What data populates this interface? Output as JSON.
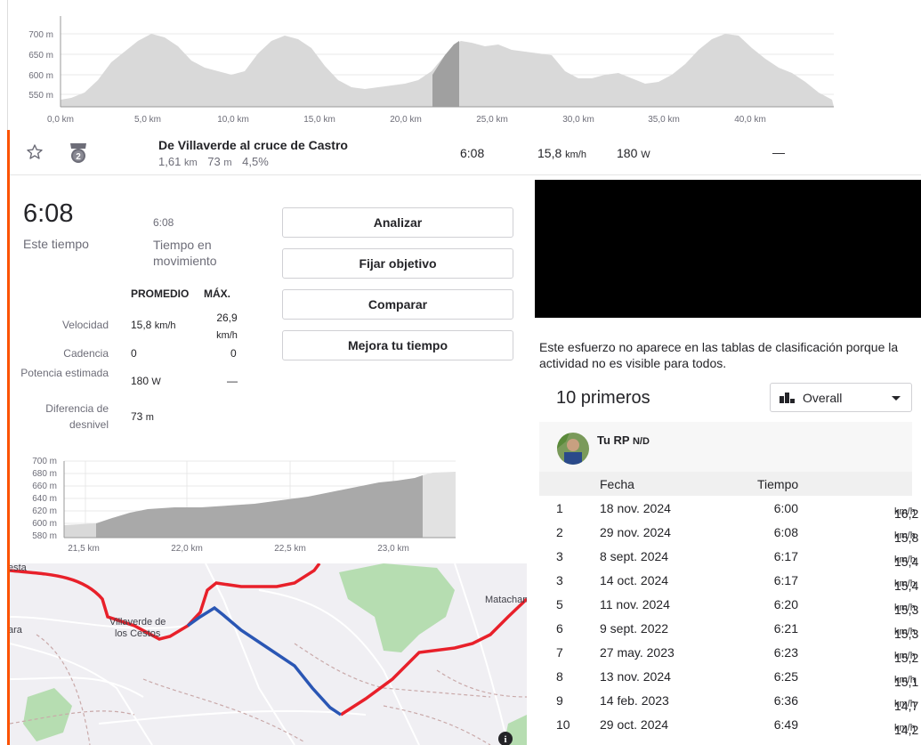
{
  "top_chart": {
    "y_ticks": [
      "700 m",
      "650 m",
      "600 m",
      "550 m"
    ],
    "x_ticks": [
      "0,0 km",
      "5,0 km",
      "10,0 km",
      "15,0 km",
      "20,0 km",
      "25,0 km",
      "30,0 km",
      "35,0 km",
      "40,0 km"
    ]
  },
  "segment": {
    "name": "De Villaverde al cruce de Castro",
    "distance": "1,61",
    "distance_unit": "km",
    "elev": "73",
    "elev_unit": "m",
    "grade": "4,5%",
    "time": "6:08",
    "speed": "15,8",
    "speed_unit": "km/h",
    "power": "180",
    "power_unit": "W",
    "extra": "—",
    "medal_number": "2"
  },
  "detail": {
    "big_time": "6:08",
    "big_time_label": "Este tiempo",
    "moving_time": "6:08",
    "moving_time_label": "Tiempo en movimiento",
    "avg_header": "PROMEDIO",
    "max_header": "MÁX.",
    "rows": [
      {
        "label": "Velocidad",
        "avg": "15,8",
        "avg_unit": "km/h",
        "max": "26,9",
        "max_unit": "km/h"
      },
      {
        "label": "Cadencia",
        "avg": "0",
        "avg_unit": "",
        "max": "0",
        "max_unit": ""
      },
      {
        "label": "Potencia estimada",
        "avg": "180",
        "avg_unit": "W",
        "max": "—",
        "max_unit": ""
      },
      {
        "label": "Diferencia de desnivel",
        "avg": "73",
        "avg_unit": "m",
        "max": "",
        "max_unit": ""
      }
    ]
  },
  "buttons": {
    "analyze": "Analizar",
    "set_goal": "Fijar objetivo",
    "compare": "Comparar",
    "improve": "Mejora tu tiempo"
  },
  "small_chart": {
    "y_ticks": [
      "700 m",
      "680 m",
      "660 m",
      "640 m",
      "620 m",
      "600 m",
      "580 m"
    ],
    "x_ticks": [
      "21,5 km",
      "22,0 km",
      "22,5 km",
      "23,0 km"
    ]
  },
  "map": {
    "place_1": "Villaverde de",
    "place_2": "los Cestos",
    "place_3": "Matachan",
    "edge_1": "esta",
    "edge_2": "ara"
  },
  "notice": "Este esfuerzo no aparece en las tablas de clasificación porque la actividad no es visible para todos.",
  "leaderboard": {
    "title": "10 primeros",
    "filter": "Overall",
    "your_pr": "Tu RP",
    "your_pr_value": "N/D",
    "col_date": "Fecha",
    "col_time": "Tiempo",
    "speed_unit": "km/h",
    "rows": [
      {
        "rank": "1",
        "date": "18 nov. 2024",
        "time": "6:00",
        "speed": "16,2"
      },
      {
        "rank": "2",
        "date": "29 nov. 2024",
        "time": "6:08",
        "speed": "15,8"
      },
      {
        "rank": "3",
        "date": "8 sept. 2024",
        "time": "6:17",
        "speed": "15,4"
      },
      {
        "rank": "3",
        "date": "14 oct. 2024",
        "time": "6:17",
        "speed": "15,4"
      },
      {
        "rank": "5",
        "date": "11 nov. 2024",
        "time": "6:20",
        "speed": "15,3"
      },
      {
        "rank": "6",
        "date": "9 sept. 2022",
        "time": "6:21",
        "speed": "15,3"
      },
      {
        "rank": "7",
        "date": "27 may. 2023",
        "time": "6:23",
        "speed": "15,2"
      },
      {
        "rank": "8",
        "date": "13 nov. 2024",
        "time": "6:25",
        "speed": "15,1"
      },
      {
        "rank": "9",
        "date": "14 feb. 2023",
        "time": "6:36",
        "speed": "14,7"
      },
      {
        "rank": "10",
        "date": "29 oct. 2024",
        "time": "6:49",
        "speed": "14,2"
      }
    ]
  },
  "colors": {
    "accent": "#fc5200",
    "route": "#e8202a",
    "segment_route": "#2a56b4",
    "chart_fill": "#d9d9d9",
    "chart_highlight": "#a0a0a0"
  }
}
